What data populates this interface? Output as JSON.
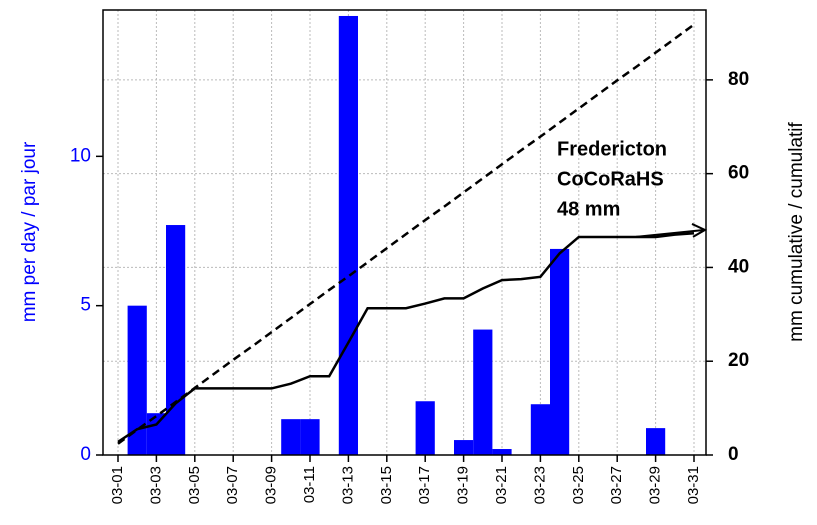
{
  "chart_data": {
    "type": "bar",
    "ylabel": "mm per day / par jour",
    "y2label": "mm cumulative / cumulatif",
    "categories": [
      "03-01",
      null,
      "03-03",
      null,
      "03-05",
      null,
      "03-07",
      null,
      "03-09",
      null,
      "03-11",
      null,
      "03-13",
      null,
      "03-15",
      null,
      "03-17",
      null,
      "03-19",
      null,
      "03-21",
      null,
      "03-23",
      null,
      "03-25",
      null,
      "03-27",
      null,
      "03-29",
      null,
      "03-31"
    ],
    "series": [
      {
        "type": "bar",
        "color": "#0000ff",
        "values": [
          0,
          5.0,
          1.4,
          7.7,
          0,
          0,
          0,
          0,
          0,
          1.2,
          1.2,
          0,
          14.7,
          0,
          0,
          0,
          1.8,
          0,
          0.5,
          4.2,
          0.2,
          0,
          1.7,
          6.9,
          0,
          0,
          0,
          0,
          0.9,
          0,
          0
        ]
      },
      {
        "type": "line",
        "axis": "y2",
        "color": "#000000",
        "values": [
          2.8,
          5.5,
          6.5,
          11,
          14.2,
          14.2,
          14.2,
          14.2,
          14.2,
          15.2,
          16.8,
          16.8,
          24,
          31.3,
          31.3,
          31.3,
          32.3,
          33.4,
          33.4,
          35.5,
          37.3,
          37.5,
          38,
          43,
          46.5,
          46.5,
          46.5,
          46.5,
          46.5,
          47,
          47.3
        ]
      },
      {
        "type": "line",
        "axis": "y2",
        "color": "#000000",
        "dashed": true,
        "values": [
          2.4,
          5.4,
          8.3,
          11.3,
          14.3,
          17.3,
          20.3,
          23.2,
          26.2,
          29.2,
          32.2,
          35.2,
          38.1,
          41.1,
          44.1,
          47.1,
          50.1,
          53.0,
          56.0,
          59.0,
          62.0,
          65.0,
          67.9,
          70.9,
          73.9,
          76.9,
          79.9,
          82.8,
          85.8,
          88.8,
          91.8
        ]
      }
    ],
    "ylim": [
      0,
      14.9
    ],
    "yticks": [
      0,
      5,
      10
    ],
    "y2lim": [
      0,
      94.9
    ],
    "y2ticks": [
      0,
      20,
      40,
      60,
      80
    ],
    "grid": true,
    "annotation": {
      "lines": [
        "Fredericton",
        "CoCoRaHS",
        "48 mm"
      ],
      "arrow_y2": 48
    }
  }
}
